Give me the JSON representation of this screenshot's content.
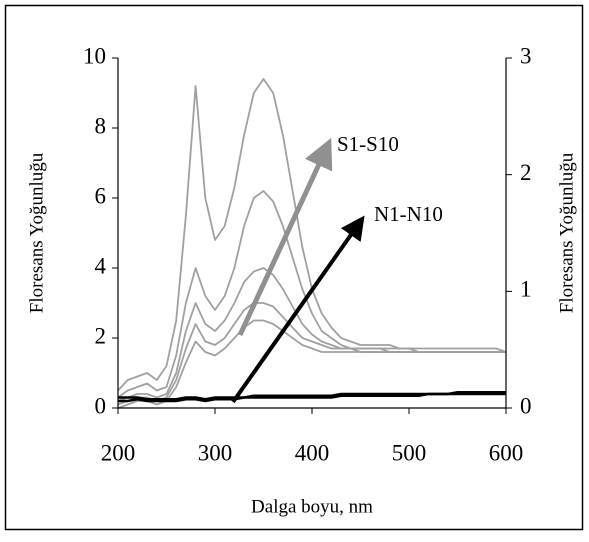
{
  "chart_data": {
    "type": "line",
    "xlabel": "Dalga boyu, nm",
    "ylabel": "Floresans Yoğunluğu",
    "y2label": "Floresans  Yoğunluğu",
    "annotations": [
      "S1-S10",
      "N1-N10"
    ],
    "x": [
      200,
      210,
      220,
      230,
      240,
      250,
      260,
      270,
      280,
      290,
      300,
      310,
      320,
      330,
      340,
      350,
      360,
      370,
      380,
      390,
      400,
      410,
      420,
      430,
      440,
      450,
      460,
      470,
      480,
      490,
      500,
      510,
      520,
      530,
      540,
      550,
      560,
      570,
      580,
      590,
      600
    ],
    "series": [
      {
        "color": "#a0a0a0",
        "values": [
          0.5,
          0.8,
          0.9,
          1.0,
          0.8,
          1.2,
          2.5,
          5.5,
          9.2,
          6.0,
          4.8,
          5.2,
          6.3,
          7.8,
          9.0,
          9.4,
          9.0,
          7.8,
          6.2,
          4.6,
          3.4,
          2.7,
          2.3,
          2.0,
          1.9,
          1.8,
          1.8,
          1.8,
          1.8,
          1.7,
          1.7,
          1.7,
          1.7,
          1.7,
          1.7,
          1.7,
          1.7,
          1.7,
          1.7,
          1.7,
          1.6
        ]
      },
      {
        "color": "#a0a0a0",
        "values": [
          0.3,
          0.5,
          0.6,
          0.7,
          0.5,
          0.6,
          1.5,
          3.0,
          4.0,
          3.2,
          2.8,
          3.2,
          4.0,
          5.2,
          6.0,
          6.2,
          5.9,
          5.2,
          4.3,
          3.4,
          2.7,
          2.2,
          2.0,
          1.8,
          1.7,
          1.7,
          1.7,
          1.7,
          1.7,
          1.7,
          1.7,
          1.6,
          1.6,
          1.6,
          1.6,
          1.6,
          1.6,
          1.6,
          1.6,
          1.6,
          1.6
        ]
      },
      {
        "color": "#a0a0a0",
        "values": [
          0.2,
          0.3,
          0.4,
          0.4,
          0.3,
          0.4,
          1.0,
          2.2,
          3.0,
          2.4,
          2.2,
          2.5,
          3.0,
          3.6,
          3.9,
          4.0,
          3.8,
          3.4,
          2.9,
          2.4,
          2.1,
          1.9,
          1.8,
          1.7,
          1.7,
          1.7,
          1.7,
          1.7,
          1.6,
          1.6,
          1.6,
          1.6,
          1.6,
          1.6,
          1.6,
          1.6,
          1.6,
          1.6,
          1.6,
          1.6,
          1.6
        ]
      },
      {
        "color": "#a0a0a0",
        "values": [
          0.1,
          0.2,
          0.3,
          0.3,
          0.2,
          0.3,
          0.8,
          1.7,
          2.4,
          1.9,
          1.8,
          2.0,
          2.4,
          2.8,
          3.0,
          3.0,
          2.9,
          2.6,
          2.3,
          2.0,
          1.9,
          1.8,
          1.7,
          1.7,
          1.7,
          1.6,
          1.6,
          1.6,
          1.6,
          1.6,
          1.6,
          1.6,
          1.6,
          1.6,
          1.6,
          1.6,
          1.6,
          1.6,
          1.6,
          1.6,
          1.6
        ]
      },
      {
        "color": "#a0a0a0",
        "values": [
          0.0,
          0.1,
          0.2,
          0.2,
          0.1,
          0.2,
          0.6,
          1.3,
          1.9,
          1.6,
          1.5,
          1.7,
          2.0,
          2.3,
          2.5,
          2.5,
          2.4,
          2.2,
          2.0,
          1.8,
          1.7,
          1.6,
          1.6,
          1.6,
          1.6,
          1.6,
          1.6,
          1.6,
          1.6,
          1.6,
          1.6,
          1.6,
          1.6,
          1.6,
          1.6,
          1.6,
          1.6,
          1.6,
          1.6,
          1.6,
          1.6
        ]
      },
      {
        "color": "#000000",
        "values": [
          0.3,
          0.3,
          0.3,
          0.25,
          0.25,
          0.25,
          0.25,
          0.3,
          0.3,
          0.25,
          0.3,
          0.3,
          0.3,
          0.3,
          0.35,
          0.35,
          0.35,
          0.35,
          0.35,
          0.35,
          0.35,
          0.35,
          0.35,
          0.4,
          0.4,
          0.4,
          0.4,
          0.4,
          0.4,
          0.4,
          0.4,
          0.4,
          0.4,
          0.4,
          0.4,
          0.45,
          0.45,
          0.45,
          0.45,
          0.45,
          0.45
        ]
      },
      {
        "color": "#000000",
        "values": [
          0.2,
          0.2,
          0.25,
          0.2,
          0.2,
          0.2,
          0.2,
          0.25,
          0.25,
          0.2,
          0.25,
          0.25,
          0.25,
          0.3,
          0.3,
          0.3,
          0.3,
          0.3,
          0.3,
          0.3,
          0.3,
          0.3,
          0.3,
          0.35,
          0.35,
          0.35,
          0.35,
          0.35,
          0.35,
          0.35,
          0.35,
          0.35,
          0.4,
          0.4,
          0.4,
          0.4,
          0.4,
          0.4,
          0.4,
          0.4,
          0.4
        ]
      }
    ],
    "xlim": [
      200,
      600
    ],
    "xticks": [
      200,
      300,
      400,
      500,
      600
    ],
    "ylim": [
      0,
      10
    ],
    "yticks": [
      0,
      2,
      4,
      6,
      8,
      10
    ],
    "y2lim": [
      0,
      3
    ],
    "y2ticks": [
      0,
      1,
      2,
      3
    ],
    "grid": false
  }
}
